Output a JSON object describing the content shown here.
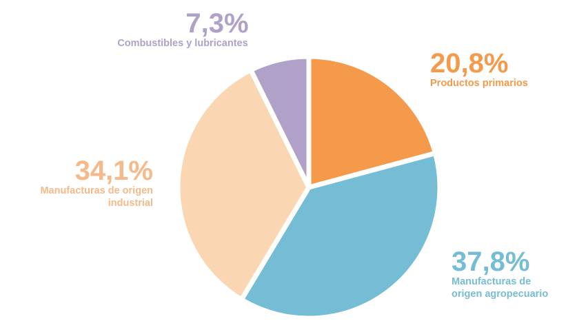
{
  "chart_data": {
    "type": "pie",
    "title": "",
    "slices": [
      {
        "percent_label": "20,8%",
        "value": 20.8,
        "name_lines": [
          "Productos primarios"
        ],
        "color": "#f49a4a"
      },
      {
        "percent_label": "37,8%",
        "value": 37.8,
        "name_lines": [
          "Manufacturas de",
          "origen agropecuario"
        ],
        "color": "#75bdd4"
      },
      {
        "percent_label": "34,1%",
        "value": 34.1,
        "name_lines": [
          "Manufacturas de origen",
          "industrial"
        ],
        "color": "#fbd6b2"
      },
      {
        "percent_label": "7,3%",
        "value": 7.3,
        "name_lines": [
          "Combustibles y lubricantes"
        ],
        "color": "#b0a1c8"
      }
    ],
    "label_colors": [
      "#f49a4a",
      "#75bdd4",
      "#f5b98a",
      "#b0a1c8"
    ],
    "start_angle_deg": 0,
    "direction": "clockwise",
    "legend": "none"
  }
}
